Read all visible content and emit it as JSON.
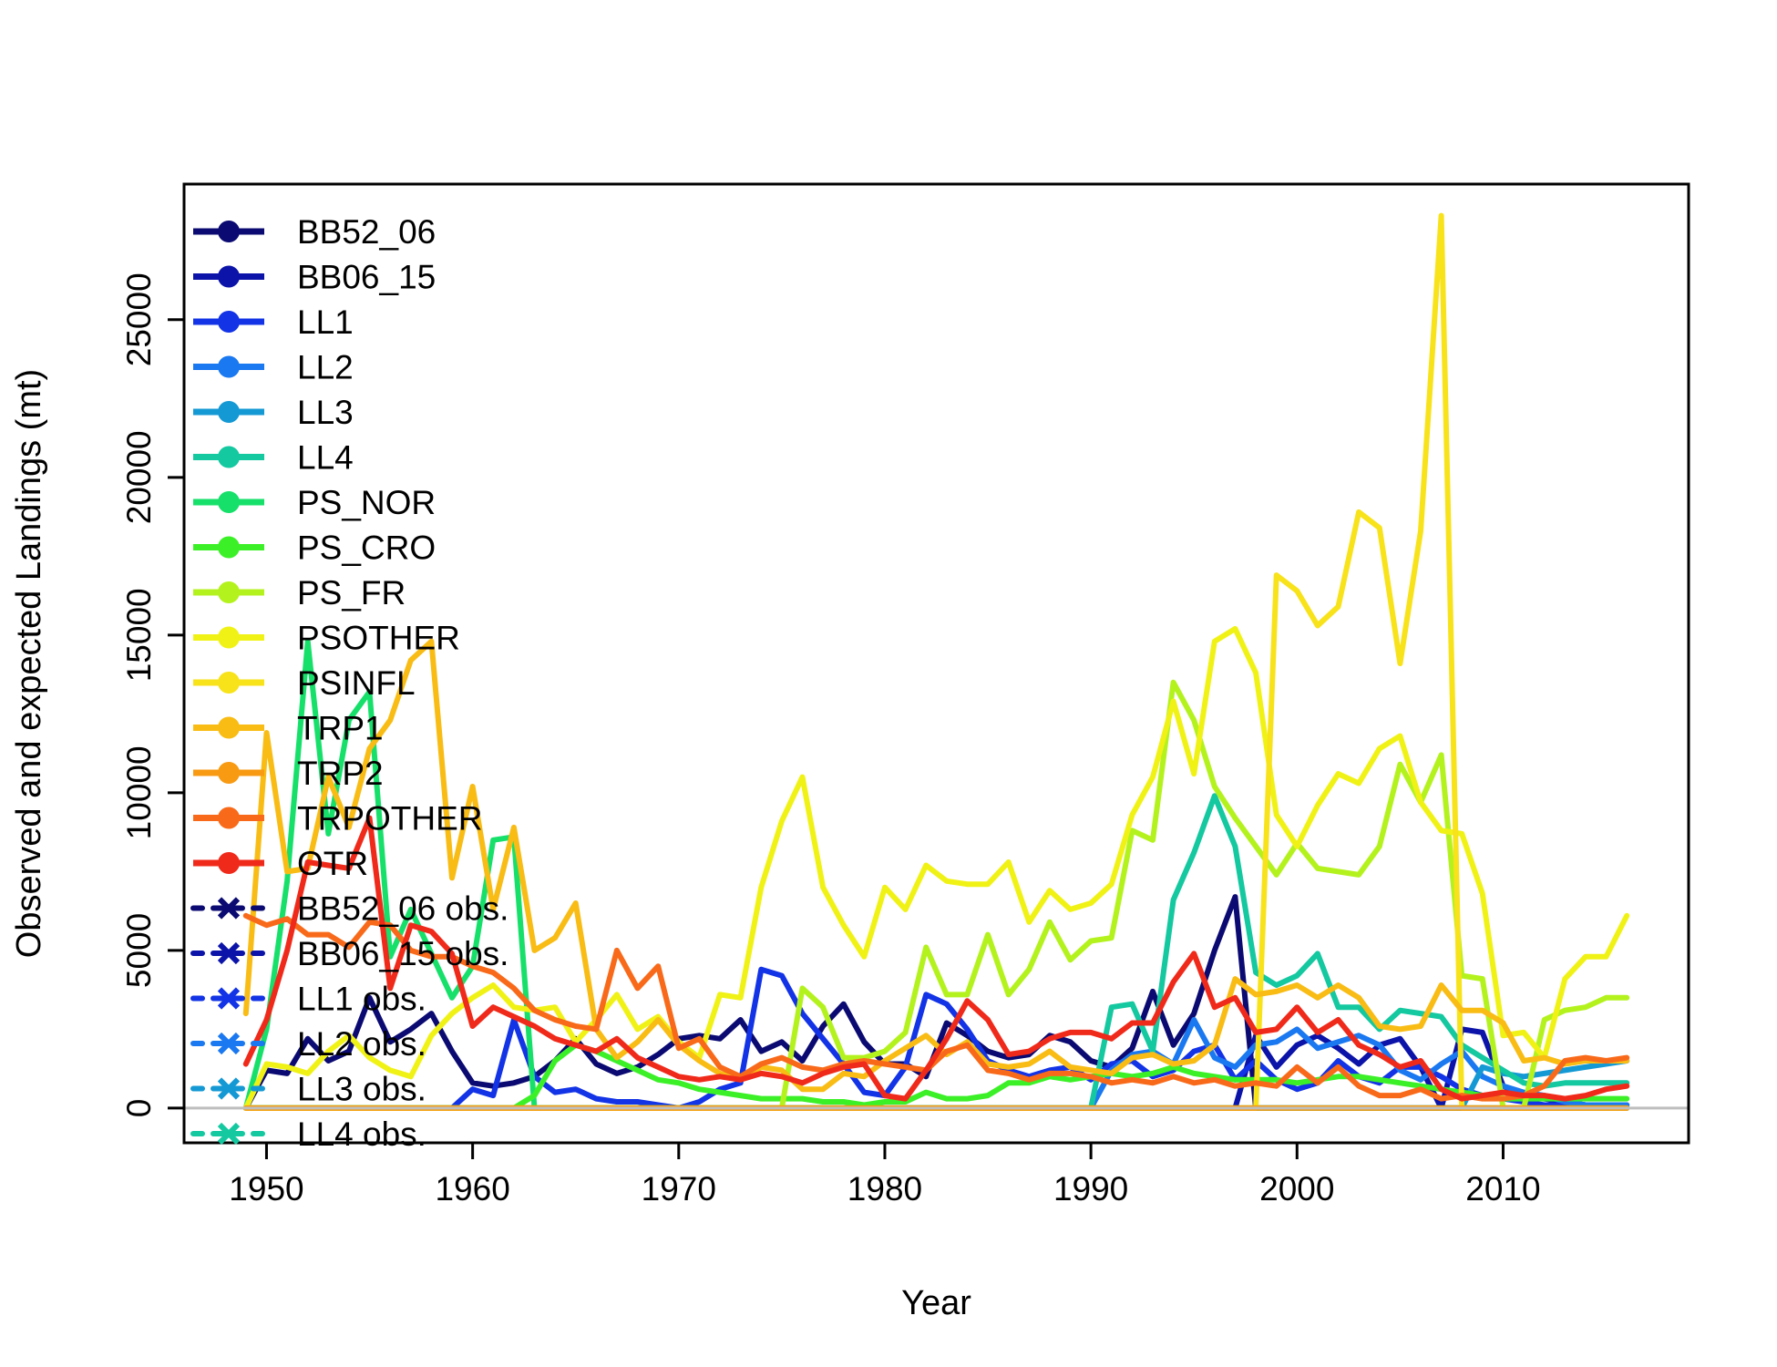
{
  "chart_data": {
    "type": "line",
    "title": "",
    "xlabel": "Year",
    "ylabel": "Observed and expected Landings (mt)",
    "xlim": [
      1946,
      2019
    ],
    "ylim": [
      -1100,
      29300
    ],
    "x_ticks": [
      1950,
      1960,
      1970,
      1980,
      1990,
      2000,
      2010
    ],
    "y_ticks": [
      0,
      5000,
      10000,
      15000,
      20000,
      25000
    ],
    "y_tick_labels": [
      "0",
      "5000",
      "10000",
      "15000",
      "20000",
      "25000"
    ],
    "zero_line": true,
    "grid": false,
    "legend_position": "top-left",
    "legend": [
      {
        "label": "BB52_06",
        "color": "#0a0a72",
        "style": "line-dot"
      },
      {
        "label": "BB06_15",
        "color": "#0b13a8",
        "style": "line-dot"
      },
      {
        "label": "LL1",
        "color": "#1233e6",
        "style": "line-dot"
      },
      {
        "label": "LL2",
        "color": "#1a78f0",
        "style": "line-dot"
      },
      {
        "label": "LL3",
        "color": "#1499d4",
        "style": "line-dot"
      },
      {
        "label": "LL4",
        "color": "#14c8a0",
        "style": "line-dot"
      },
      {
        "label": "PS_NOR",
        "color": "#16e06a",
        "style": "line-dot"
      },
      {
        "label": "PS_CRO",
        "color": "#3cf028",
        "style": "line-dot"
      },
      {
        "label": "PS_FR",
        "color": "#b4f21e",
        "style": "line-dot"
      },
      {
        "label": "PSOTHER",
        "color": "#f0f216",
        "style": "line-dot"
      },
      {
        "label": "PSINFL",
        "color": "#f8e21a",
        "style": "line-dot"
      },
      {
        "label": "TRP1",
        "color": "#f8bc14",
        "style": "line-dot"
      },
      {
        "label": "TRP2",
        "color": "#f89a12",
        "style": "line-dot"
      },
      {
        "label": "TRPOTHER",
        "color": "#f86a1a",
        "style": "line-dot"
      },
      {
        "label": "OTR",
        "color": "#f02a1a",
        "style": "line-dot"
      },
      {
        "label": "BB52_06 obs.",
        "color": "#0a0a72",
        "style": "dash-cross"
      },
      {
        "label": "BB06_15 obs.",
        "color": "#0b13a8",
        "style": "dash-cross"
      },
      {
        "label": "LL1 obs.",
        "color": "#1233e6",
        "style": "dash-cross"
      },
      {
        "label": "LL2 obs.",
        "color": "#1a78f0",
        "style": "dash-cross"
      },
      {
        "label": "LL3 obs.",
        "color": "#1499d4",
        "style": "dash-cross"
      },
      {
        "label": "LL4 obs.",
        "color": "#14c8a0",
        "style": "dash-cross"
      }
    ],
    "x": [
      1949,
      1950,
      1951,
      1952,
      1953,
      1954,
      1955,
      1956,
      1957,
      1958,
      1959,
      1960,
      1961,
      1962,
      1963,
      1964,
      1965,
      1966,
      1967,
      1968,
      1969,
      1970,
      1971,
      1972,
      1973,
      1974,
      1975,
      1976,
      1977,
      1978,
      1979,
      1980,
      1981,
      1982,
      1983,
      1984,
      1985,
      1986,
      1987,
      1988,
      1989,
      1990,
      1991,
      1992,
      1993,
      1994,
      1995,
      1996,
      1997,
      1998,
      1999,
      2000,
      2001,
      2002,
      2003,
      2004,
      2005,
      2006,
      2007,
      2008,
      2009,
      2010,
      2011,
      2012,
      2013,
      2014,
      2015,
      2016
    ],
    "series": [
      {
        "name": "BB52_06",
        "color": "#0a0a72",
        "values": [
          0,
          1200,
          1100,
          2200,
          1500,
          1800,
          3500,
          2100,
          2500,
          3000,
          1800,
          800,
          700,
          800,
          1000,
          1500,
          2200,
          1400,
          1100,
          1300,
          1700,
          2200,
          2300,
          2200,
          2800,
          1800,
          2100,
          1500,
          2600,
          3300,
          2100,
          1400,
          1400,
          1000,
          2700,
          2300,
          1800,
          1600,
          1700,
          2300,
          2100,
          1500,
          1300,
          1900,
          3700,
          2000,
          3000,
          5000,
          6700,
          0,
          0,
          0,
          0,
          0,
          0,
          0,
          0,
          0,
          0,
          0,
          0,
          0,
          0,
          0,
          0,
          0,
          0,
          0
        ]
      },
      {
        "name": "BB06_15",
        "color": "#0b13a8",
        "values": [
          0,
          0,
          0,
          0,
          0,
          0,
          0,
          0,
          0,
          0,
          0,
          0,
          0,
          0,
          0,
          0,
          0,
          0,
          0,
          0,
          0,
          0,
          0,
          0,
          0,
          0,
          0,
          0,
          0,
          0,
          0,
          0,
          0,
          0,
          0,
          0,
          0,
          0,
          0,
          0,
          0,
          0,
          0,
          0,
          0,
          0,
          0,
          0,
          0,
          2300,
          1300,
          2000,
          2300,
          1900,
          1400,
          2000,
          2200,
          1300,
          0,
          2500,
          2400,
          700,
          400,
          300,
          200,
          100,
          100,
          100
        ]
      },
      {
        "name": "LL1",
        "color": "#1233e6",
        "values": [
          0,
          0,
          0,
          0,
          0,
          0,
          0,
          0,
          0,
          0,
          0,
          600,
          400,
          2800,
          1000,
          500,
          600,
          300,
          200,
          200,
          100,
          0,
          200,
          600,
          800,
          4400,
          4200,
          3000,
          2200,
          1400,
          500,
          400,
          1300,
          3600,
          3300,
          2500,
          1500,
          1200,
          1000,
          1200,
          1300,
          900,
          1400,
          1500,
          1000,
          1200,
          1800,
          2000,
          900,
          1500,
          900,
          600,
          800,
          1500,
          1000,
          800,
          1300,
          1300,
          1000,
          600,
          400,
          300,
          200,
          100,
          100,
          0,
          0,
          0
        ]
      },
      {
        "name": "LL2",
        "color": "#1a78f0",
        "values": [
          0,
          0,
          0,
          0,
          0,
          0,
          0,
          0,
          0,
          0,
          0,
          0,
          0,
          0,
          0,
          0,
          0,
          0,
          0,
          0,
          0,
          0,
          0,
          0,
          0,
          0,
          0,
          0,
          0,
          0,
          0,
          0,
          0,
          0,
          0,
          0,
          0,
          0,
          0,
          0,
          0,
          0,
          1200,
          1700,
          1800,
          1400,
          2800,
          1600,
          1300,
          2000,
          2100,
          2500,
          1900,
          2100,
          2300,
          2000,
          1200,
          900,
          1400,
          1800,
          1000,
          700,
          500,
          400,
          200,
          100,
          100,
          100
        ]
      },
      {
        "name": "LL3",
        "color": "#1499d4",
        "values": [
          0,
          0,
          0,
          0,
          0,
          0,
          0,
          0,
          0,
          0,
          0,
          0,
          0,
          0,
          0,
          0,
          0,
          0,
          0,
          0,
          0,
          0,
          0,
          0,
          0,
          0,
          0,
          0,
          0,
          0,
          0,
          0,
          0,
          0,
          0,
          0,
          0,
          0,
          0,
          0,
          0,
          0,
          0,
          0,
          0,
          0,
          0,
          0,
          0,
          0,
          0,
          0,
          0,
          0,
          0,
          0,
          0,
          0,
          0,
          0,
          1300,
          1100,
          1000,
          1100,
          1200,
          1300,
          1400,
          1500
        ]
      },
      {
        "name": "LL4",
        "color": "#14c8a0",
        "values": [
          0,
          0,
          0,
          0,
          0,
          0,
          0,
          0,
          0,
          0,
          0,
          0,
          0,
          0,
          0,
          0,
          0,
          0,
          0,
          0,
          0,
          0,
          0,
          0,
          0,
          0,
          0,
          0,
          0,
          0,
          0,
          0,
          0,
          0,
          0,
          0,
          0,
          0,
          0,
          0,
          0,
          0,
          3200,
          3300,
          1800,
          6600,
          8100,
          9900,
          8300,
          4300,
          3900,
          4200,
          4900,
          3200,
          3200,
          2500,
          3100,
          3000,
          2900,
          2000,
          1600,
          1200,
          800,
          700,
          800,
          800,
          800,
          800
        ]
      },
      {
        "name": "PS_NOR",
        "color": "#16e06a",
        "values": [
          0,
          2500,
          7200,
          14800,
          8700,
          12300,
          13200,
          4800,
          6300,
          4900,
          3500,
          4500,
          8500,
          8600,
          0,
          0,
          0,
          0,
          0,
          0,
          0,
          0,
          0,
          0,
          0,
          0,
          0,
          0,
          0,
          0,
          0,
          0,
          0,
          0,
          0,
          0,
          0,
          0,
          0,
          0,
          0,
          0,
          0,
          0,
          0,
          0,
          0,
          0,
          0,
          0,
          0,
          0,
          0,
          0,
          0,
          0,
          0,
          0,
          0,
          0,
          0,
          0,
          0,
          0,
          0,
          0,
          0,
          0
        ]
      },
      {
        "name": "PS_CRO",
        "color": "#3cf028",
        "values": [
          0,
          0,
          0,
          0,
          0,
          0,
          0,
          0,
          0,
          0,
          0,
          0,
          0,
          0,
          400,
          1500,
          2000,
          1800,
          1500,
          1200,
          900,
          800,
          600,
          500,
          400,
          300,
          300,
          300,
          200,
          200,
          100,
          200,
          200,
          500,
          300,
          300,
          400,
          800,
          800,
          1000,
          900,
          1000,
          1100,
          1000,
          1100,
          1300,
          1100,
          1000,
          900,
          900,
          900,
          800,
          900,
          1000,
          1000,
          900,
          800,
          700,
          600,
          500,
          400,
          300,
          300,
          300,
          300,
          300,
          300,
          300
        ]
      },
      {
        "name": "PS_FR",
        "color": "#b4f21e",
        "values": [
          0,
          0,
          0,
          0,
          0,
          0,
          0,
          0,
          0,
          0,
          0,
          0,
          0,
          0,
          0,
          0,
          0,
          0,
          0,
          0,
          0,
          0,
          0,
          0,
          0,
          0,
          0,
          3800,
          3200,
          1600,
          1600,
          1800,
          2400,
          5100,
          3600,
          3600,
          5500,
          3600,
          4400,
          5900,
          4700,
          5300,
          5400,
          8800,
          8500,
          13500,
          12300,
          10200,
          9200,
          8300,
          7400,
          8400,
          7600,
          7500,
          7400,
          8300,
          10900,
          9700,
          11200,
          4200,
          4100,
          0,
          0,
          2800,
          3100,
          3200,
          3500,
          3500
        ]
      },
      {
        "name": "PSOTHER",
        "color": "#f0f216",
        "values": [
          0,
          1400,
          1300,
          1100,
          1800,
          2300,
          1600,
          1200,
          1000,
          2300,
          3000,
          3500,
          3900,
          3200,
          3100,
          3200,
          2100,
          2800,
          3600,
          2500,
          2900,
          2100,
          1600,
          3600,
          3500,
          7000,
          9100,
          10500,
          7000,
          5800,
          4800,
          7000,
          6300,
          7700,
          7200,
          7100,
          7100,
          7800,
          5900,
          6900,
          6300,
          6500,
          7100,
          9300,
          10500,
          12900,
          10600,
          14800,
          15200,
          13800,
          9300,
          8300,
          9600,
          10600,
          10300,
          11400,
          11800,
          9700,
          8800,
          8700,
          6800,
          2300,
          2400,
          1600,
          4100,
          4800,
          4800,
          6100
        ]
      },
      {
        "name": "PSINFL",
        "color": "#f8e21a",
        "values": [
          0,
          0,
          0,
          0,
          0,
          0,
          0,
          0,
          0,
          0,
          0,
          0,
          0,
          0,
          0,
          0,
          0,
          0,
          0,
          0,
          0,
          0,
          0,
          0,
          0,
          0,
          0,
          0,
          0,
          0,
          0,
          0,
          0,
          0,
          0,
          0,
          0,
          0,
          0,
          0,
          0,
          0,
          0,
          0,
          0,
          0,
          0,
          0,
          0,
          0,
          16900,
          16400,
          15300,
          15900,
          18900,
          18400,
          14100,
          18300,
          28300,
          0,
          0,
          0,
          0,
          0,
          0,
          0,
          0,
          0
        ]
      },
      {
        "name": "TRP1",
        "color": "#f8bc14",
        "values": [
          3000,
          11900,
          7500,
          7600,
          10500,
          8900,
          11400,
          12300,
          14200,
          14800,
          7300,
          10200,
          6300,
          8900,
          5000,
          5400,
          6500,
          2500,
          1600,
          2100,
          2800,
          2000,
          1500,
          1100,
          900,
          1300,
          1200,
          600,
          600,
          1100,
          1000,
          1500,
          1900,
          2300,
          1700,
          2100,
          1400,
          1300,
          1400,
          1800,
          1300,
          1200,
          1100,
          1600,
          1700,
          1400,
          1500,
          2000,
          4100,
          3600,
          3700,
          3900,
          3500,
          3900,
          3500,
          2600,
          2500,
          2600,
          3900,
          3100,
          3100,
          2700,
          1500,
          1600,
          1400,
          1500,
          1500,
          1500
        ]
      },
      {
        "name": "TRP2",
        "color": "#f89a12",
        "values": [
          0,
          0,
          0,
          0,
          0,
          0,
          0,
          0,
          0,
          0,
          0,
          0,
          0,
          0,
          0,
          0,
          0,
          0,
          0,
          0,
          0,
          0,
          0,
          0,
          0,
          0,
          0,
          0,
          0,
          0,
          0,
          0,
          0,
          0,
          0,
          0,
          0,
          0,
          0,
          0,
          0,
          0,
          0,
          0,
          0,
          0,
          0,
          0,
          0,
          0,
          0,
          0,
          0,
          0,
          0,
          0,
          0,
          0,
          0,
          0,
          0,
          0,
          0,
          0,
          0,
          0,
          0,
          0
        ]
      },
      {
        "name": "TRPOTHER",
        "color": "#f86a1a",
        "values": [
          6100,
          5800,
          6000,
          5500,
          5500,
          5100,
          5900,
          5800,
          5000,
          4800,
          4800,
          4500,
          4300,
          3800,
          3100,
          2800,
          2600,
          2500,
          5000,
          3800,
          4500,
          1900,
          2200,
          1300,
          1000,
          1400,
          1600,
          1300,
          1200,
          1400,
          1500,
          1400,
          1300,
          1200,
          1800,
          2000,
          1200,
          1100,
          900,
          1100,
          1100,
          1000,
          800,
          900,
          800,
          1000,
          800,
          900,
          700,
          800,
          700,
          1300,
          800,
          1300,
          700,
          400,
          400,
          600,
          300,
          400,
          300,
          300,
          400,
          700,
          1500,
          1600,
          1500,
          1600
        ]
      },
      {
        "name": "OTR",
        "color": "#f02a1a",
        "values": [
          1400,
          2800,
          5000,
          7800,
          7700,
          7600,
          9200,
          3800,
          5800,
          5600,
          4900,
          2600,
          3200,
          2900,
          2600,
          2200,
          2000,
          1800,
          2200,
          1600,
          1300,
          1000,
          900,
          1000,
          900,
          1100,
          1000,
          800,
          1100,
          1300,
          1400,
          400,
          300,
          1200,
          2200,
          3400,
          2800,
          1700,
          1800,
          2200,
          2400,
          2400,
          2200,
          2700,
          2700,
          4000,
          4900,
          3200,
          3500,
          2400,
          2500,
          3200,
          2400,
          2800,
          2000,
          1700,
          1300,
          1500,
          600,
          300,
          400,
          500,
          400,
          400,
          300,
          400,
          600,
          700
        ]
      }
    ]
  }
}
